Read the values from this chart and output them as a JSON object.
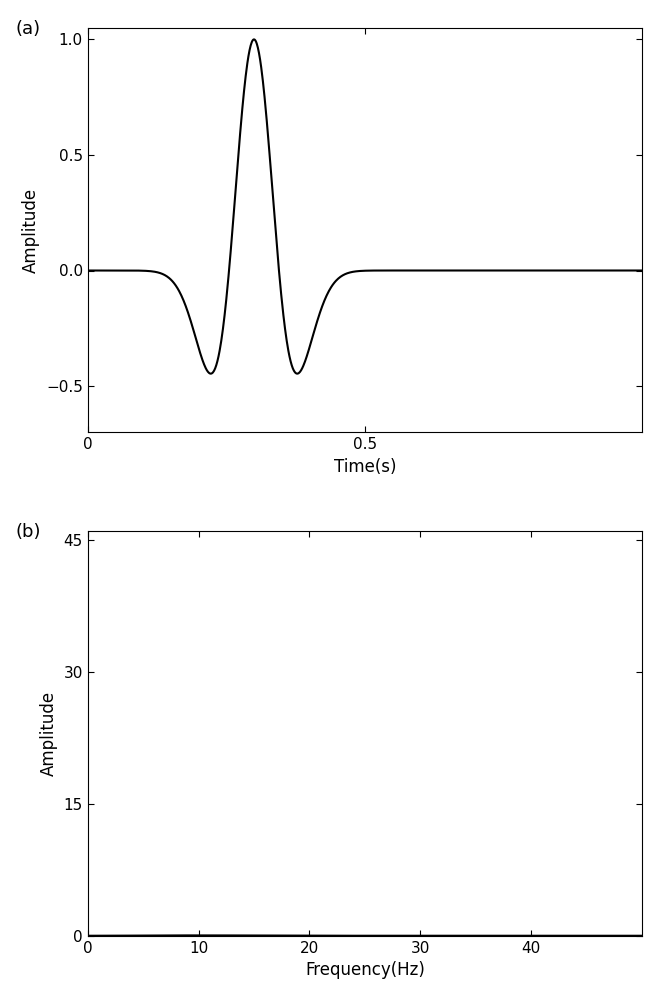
{
  "plot_a": {
    "xlabel": "Time(s)",
    "ylabel": "Amplitude",
    "label": "(a)",
    "xlim": [
      0,
      1
    ],
    "ylim": [
      -0.7,
      1.05
    ],
    "yticks": [
      -0.5,
      0,
      0.5,
      1
    ],
    "xticks": [
      0,
      0.5
    ],
    "xticklabels": [
      "0",
      "0.5"
    ],
    "peak_freq": 5,
    "t_start": 0,
    "t_end": 1,
    "dt": 0.001,
    "t0": 0.3
  },
  "plot_b": {
    "xlabel": "Frequency(Hz)",
    "ylabel": "Amplitude",
    "label": "(b)",
    "xlim": [
      0,
      50
    ],
    "ylim": [
      0,
      46
    ],
    "yticks": [
      0,
      15,
      30,
      45
    ],
    "xticks": [
      0,
      10,
      20,
      30,
      40
    ],
    "xticklabels": [
      "0",
      "10",
      "20",
      "30",
      "40"
    ],
    "peak_freq": 10,
    "t_start": 0,
    "t_end": 1,
    "dt": 0.001,
    "t0": 0.3
  },
  "line_color": "#000000",
  "line_width": 1.5,
  "bg_color": "#ffffff",
  "font_size_label": 12,
  "font_size_tick": 11,
  "font_size_panel": 13
}
